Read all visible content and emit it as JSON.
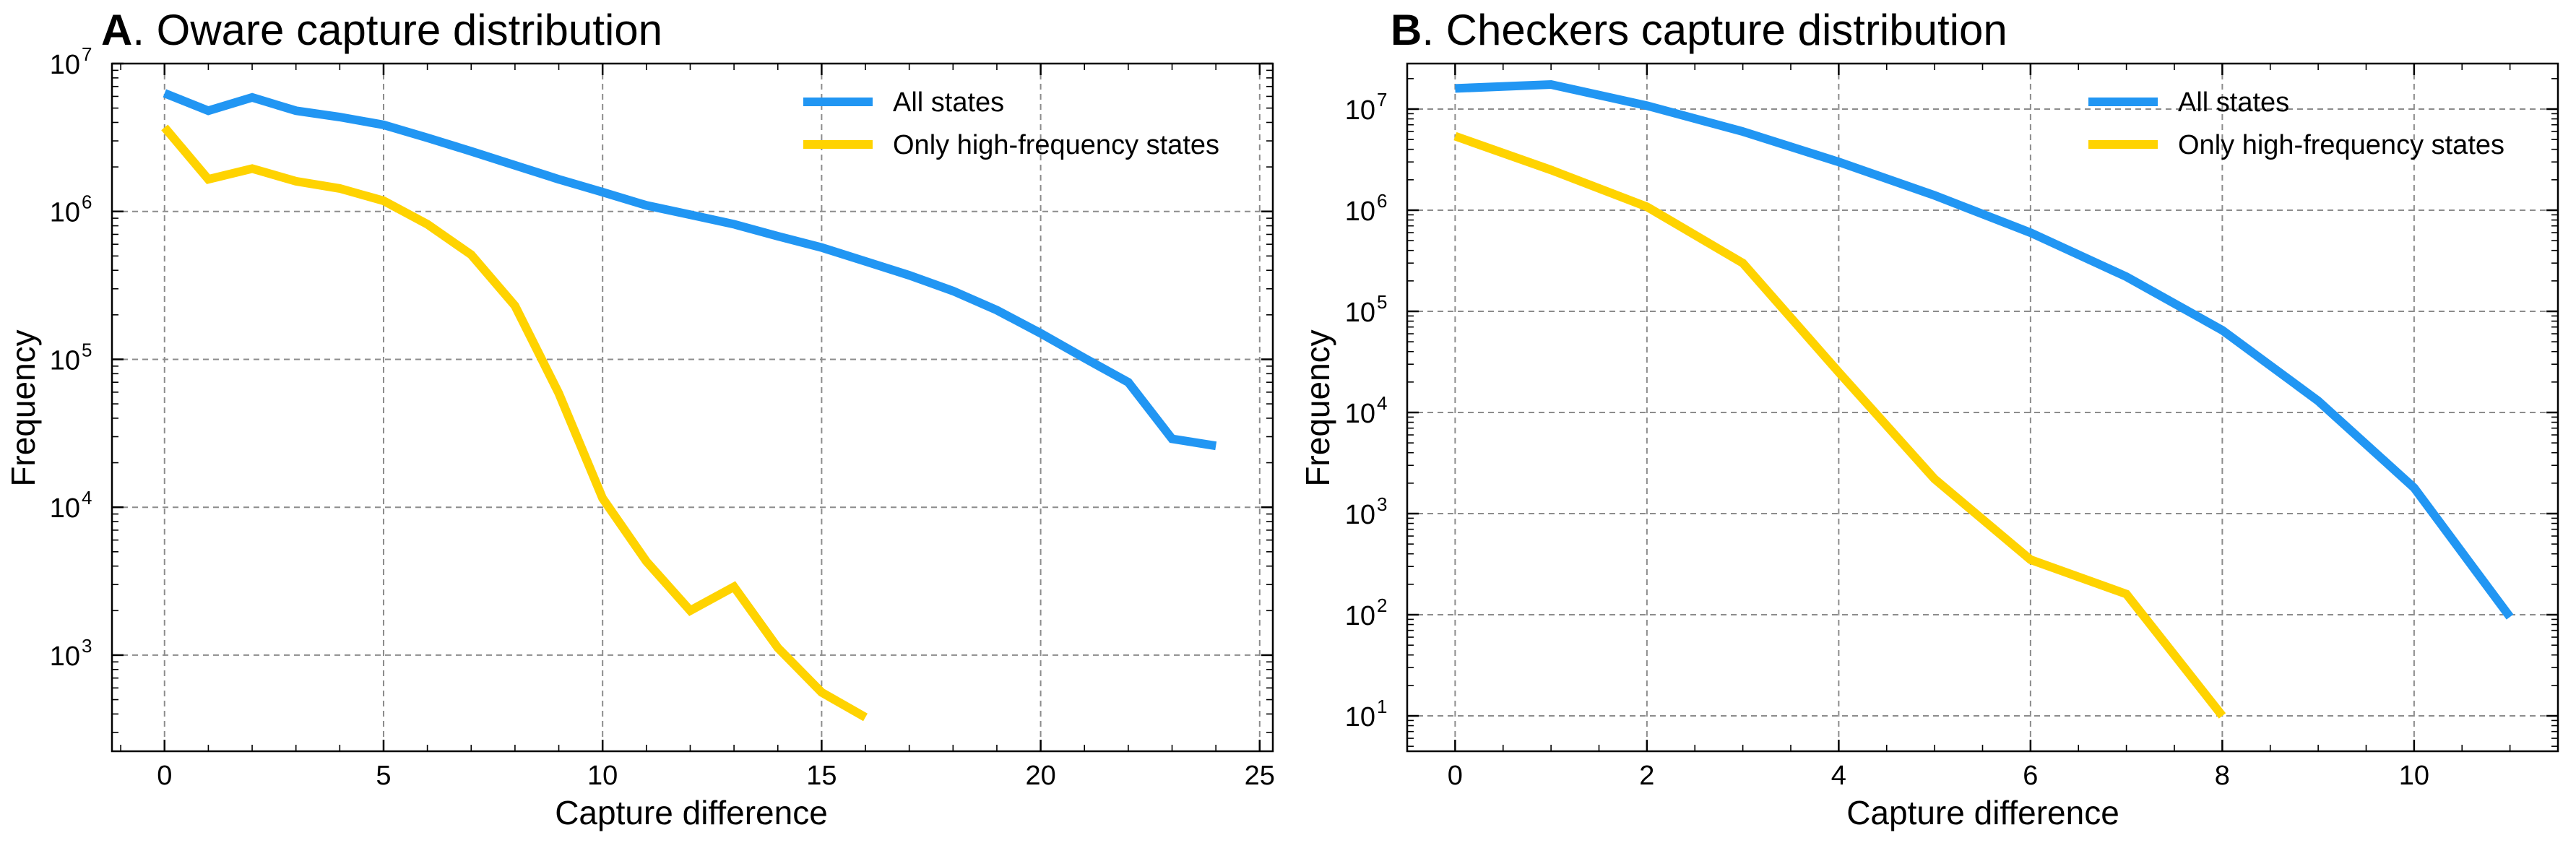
{
  "chart_data": [
    {
      "type": "line",
      "panel_letter": "A",
      "title": ". Oware capture distribution",
      "xlabel": "Capture difference",
      "ylabel": "Frequency",
      "y_scale": "log",
      "xlim": [
        -1.2,
        25.3
      ],
      "ylim_exp": [
        2.35,
        7.0
      ],
      "x_ticks": [
        0,
        5,
        10,
        15,
        20,
        25
      ],
      "y_ticks_exp": [
        3,
        4,
        5,
        6,
        7
      ],
      "grid": true,
      "legend_position": "top-right",
      "series": [
        {
          "name": "All states",
          "color": "#2196f3",
          "x": [
            0,
            1,
            2,
            3,
            4,
            5,
            6,
            7,
            8,
            9,
            10,
            11,
            12,
            13,
            14,
            15,
            16,
            17,
            18,
            19,
            20,
            21,
            22,
            23,
            24
          ],
          "y": [
            6300000,
            4800000,
            5900000,
            4800000,
            4350000,
            3850000,
            3150000,
            2550000,
            2050000,
            1650000,
            1350000,
            1100000,
            950000,
            820000,
            680000,
            570000,
            460000,
            370000,
            290000,
            215000,
            150000,
            102000,
            70000,
            29000,
            26000
          ]
        },
        {
          "name": "Only high-frequency states",
          "color": "#ffd300",
          "x": [
            0,
            1,
            2,
            3,
            4,
            5,
            6,
            7,
            8,
            9,
            10,
            11,
            12,
            13,
            14,
            15,
            16
          ],
          "y": [
            3700000,
            1650000,
            1950000,
            1600000,
            1430000,
            1180000,
            820000,
            510000,
            230000,
            59000,
            11500,
            4300,
            2000,
            2900,
            1120,
            560,
            380
          ]
        }
      ]
    },
    {
      "type": "line",
      "panel_letter": "B",
      "title": ". Checkers capture distribution",
      "xlabel": "Capture difference",
      "ylabel": "Frequency",
      "y_scale": "log",
      "xlim": [
        -0.5,
        11.5
      ],
      "ylim_exp": [
        0.65,
        7.45
      ],
      "x_ticks": [
        0,
        2,
        4,
        6,
        8,
        10
      ],
      "y_ticks_exp": [
        1,
        2,
        3,
        4,
        5,
        6,
        7
      ],
      "grid": true,
      "legend_position": "top-right",
      "series": [
        {
          "name": "All states",
          "color": "#2196f3",
          "x": [
            0,
            1,
            2,
            3,
            4,
            5,
            6,
            7,
            8,
            9,
            10,
            11
          ],
          "y": [
            16000000,
            17500000,
            10800000,
            6000000,
            3000000,
            1400000,
            600000,
            220000,
            65000,
            13000,
            1800,
            95
          ]
        },
        {
          "name": "Only high-frequency states",
          "color": "#ffd300",
          "x": [
            0,
            1,
            2,
            3,
            4,
            5,
            6,
            7,
            8
          ],
          "y": [
            5400000,
            2500000,
            1080000,
            300000,
            25000,
            2200,
            350,
            160,
            10
          ]
        }
      ]
    }
  ]
}
